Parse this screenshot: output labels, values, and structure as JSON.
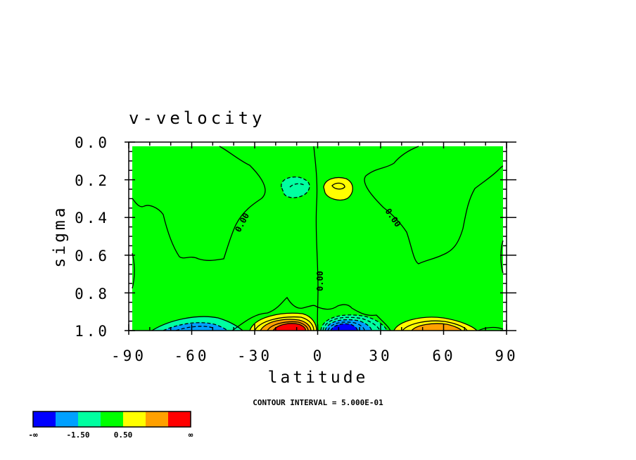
{
  "chart_data": {
    "type": "contour",
    "title": "v-velocity",
    "xlabel": "latitude",
    "ylabel": "sigma",
    "xlim": [
      -90,
      90
    ],
    "ylim": [
      1.0,
      0.0
    ],
    "x_ticks": [
      "-90",
      "-60",
      "-30",
      "0",
      "30",
      "60",
      "90"
    ],
    "y_ticks": [
      "0.0",
      "0.2",
      "0.4",
      "0.6",
      "0.8",
      "1.0"
    ],
    "contour_labels": [
      "0.00",
      "0.00",
      "0.00"
    ],
    "contour_interval_text": "CONTOUR INTERVAL = 5.000E-01",
    "colorbar": {
      "colors": [
        "#0000ff",
        "#00a0ff",
        "#00ffa0",
        "#00ff00",
        "#ffff00",
        "#ffa000",
        "#ff0000"
      ],
      "labels": [
        "-∞",
        "-1.50",
        "0.50",
        "∞"
      ]
    },
    "features": [
      {
        "sign": "negative",
        "lat": -55,
        "sigma": 0.98,
        "description": "southern flank jet"
      },
      {
        "sign": "positive",
        "lat": -12,
        "sigma": 0.97,
        "peak_bin": "red"
      },
      {
        "sign": "negative",
        "lat": 12,
        "sigma": 0.97,
        "peak_bin": "blue"
      },
      {
        "sign": "positive",
        "lat": 55,
        "sigma": 0.98,
        "peak_bin": "orange"
      },
      {
        "sign": "negative",
        "lat": -10,
        "sigma": 0.25
      },
      {
        "sign": "positive",
        "lat": 10,
        "sigma": 0.25
      }
    ]
  }
}
